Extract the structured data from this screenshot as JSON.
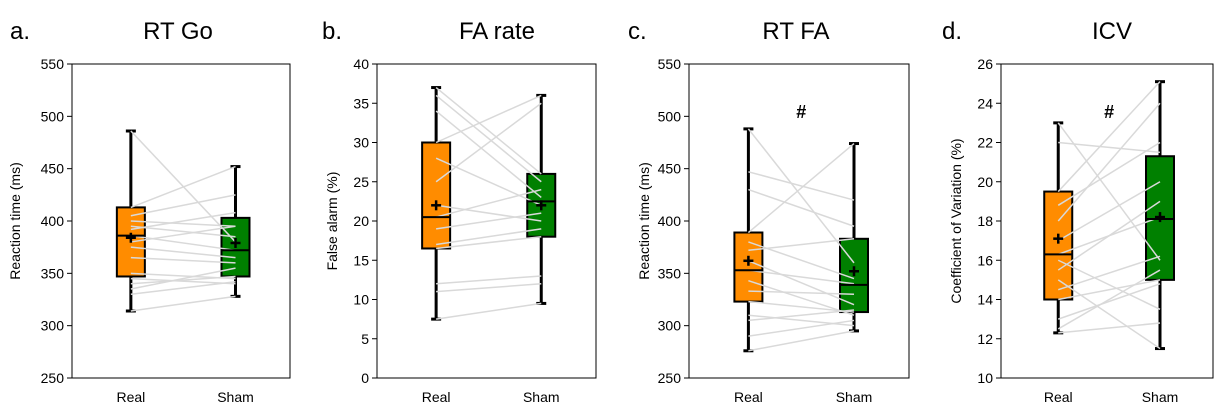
{
  "colors": {
    "real": "#FF8C00",
    "sham": "#008000",
    "pairs": "#D9D9D9",
    "frame": "#000000"
  },
  "chart_data": [
    {
      "type": "box",
      "letter": "a.",
      "title": "RT Go",
      "ylabel": "Reaction  time  (ms)",
      "categories": [
        "Real",
        "Sham"
      ],
      "ylim": [
        250,
        550
      ],
      "yticks": [
        250,
        300,
        350,
        400,
        450,
        500,
        550
      ],
      "annotation": "",
      "boxes": [
        {
          "name": "Real",
          "min": 314,
          "q1": 347,
          "median": 386,
          "q3": 413,
          "max": 486,
          "mean": 384
        },
        {
          "name": "Sham",
          "min": 328,
          "q1": 347,
          "median": 372,
          "q3": 403,
          "max": 452,
          "mean": 379
        }
      ],
      "pairs": [
        [
          486,
          380
        ],
        [
          413,
          452
        ],
        [
          405,
          425
        ],
        [
          400,
          395
        ],
        [
          395,
          385
        ],
        [
          392,
          408
        ],
        [
          386,
          372
        ],
        [
          380,
          395
        ],
        [
          375,
          365
        ],
        [
          365,
          360
        ],
        [
          350,
          345
        ],
        [
          345,
          340
        ],
        [
          340,
          347
        ],
        [
          335,
          355
        ],
        [
          330,
          342
        ],
        [
          314,
          328
        ]
      ]
    },
    {
      "type": "box",
      "letter": "b.",
      "title": "FA rate",
      "ylabel": "False alarm (%)",
      "categories": [
        "Real",
        "Sham"
      ],
      "ylim": [
        0,
        40
      ],
      "yticks": [
        0,
        5,
        10,
        15,
        20,
        25,
        30,
        35,
        40
      ],
      "annotation": "",
      "boxes": [
        {
          "name": "Real",
          "min": 7.5,
          "q1": 16.5,
          "median": 20.5,
          "q3": 30,
          "max": 37,
          "mean": 22
        },
        {
          "name": "Sham",
          "min": 9.5,
          "q1": 18,
          "median": 22.5,
          "q3": 26,
          "max": 36,
          "mean": 22
        }
      ],
      "pairs": [
        [
          37,
          26
        ],
        [
          36,
          25
        ],
        [
          34,
          23
        ],
        [
          30,
          36
        ],
        [
          28,
          22
        ],
        [
          25,
          35
        ],
        [
          22,
          20
        ],
        [
          20.5,
          24
        ],
        [
          19,
          21
        ],
        [
          17,
          19
        ],
        [
          16.5,
          18
        ],
        [
          12,
          13
        ],
        [
          11,
          12
        ],
        [
          7.5,
          9.5
        ]
      ]
    },
    {
      "type": "box",
      "letter": "c.",
      "title": "RT FA",
      "ylabel": "Reaction time (ms)",
      "categories": [
        "Real",
        "Sham"
      ],
      "ylim": [
        250,
        550
      ],
      "yticks": [
        250,
        300,
        350,
        400,
        450,
        500,
        550
      ],
      "annotation": "#",
      "boxes": [
        {
          "name": "Real",
          "min": 276,
          "q1": 323,
          "median": 353,
          "q3": 389,
          "max": 488,
          "mean": 362
        },
        {
          "name": "Sham",
          "min": 295,
          "q1": 313,
          "median": 339,
          "q3": 383,
          "max": 474,
          "mean": 352
        }
      ],
      "pairs": [
        [
          488,
          360
        ],
        [
          447,
          420
        ],
        [
          430,
          395
        ],
        [
          389,
          474
        ],
        [
          380,
          345
        ],
        [
          372,
          383
        ],
        [
          362,
          320
        ],
        [
          353,
          340
        ],
        [
          343,
          310
        ],
        [
          333,
          330
        ],
        [
          323,
          313
        ],
        [
          310,
          300
        ],
        [
          305,
          315
        ],
        [
          290,
          305
        ],
        [
          276,
          295
        ]
      ]
    },
    {
      "type": "box",
      "letter": "d.",
      "title": "ICV",
      "ylabel": "Coefficient of Variation (%)",
      "categories": [
        "Real",
        "Sham"
      ],
      "ylim": [
        10,
        26
      ],
      "yticks": [
        10,
        12,
        14,
        16,
        18,
        20,
        22,
        24,
        26
      ],
      "annotation": "#",
      "boxes": [
        {
          "name": "Real",
          "min": 12.3,
          "q1": 14,
          "median": 16.3,
          "q3": 19.5,
          "max": 23,
          "mean": 17.1
        },
        {
          "name": "Sham",
          "min": 11.5,
          "q1": 15,
          "median": 18.1,
          "q3": 21.3,
          "max": 25.1,
          "mean": 18.2
        }
      ],
      "pairs": [
        [
          23,
          16
        ],
        [
          22,
          21.5
        ],
        [
          19.5,
          25.1
        ],
        [
          18.8,
          22
        ],
        [
          18,
          24
        ],
        [
          17,
          20
        ],
        [
          16.3,
          18.2
        ],
        [
          16,
          13.5
        ],
        [
          15.5,
          19
        ],
        [
          15,
          11.5
        ],
        [
          14.5,
          16.2
        ],
        [
          14,
          15
        ],
        [
          13,
          14.8
        ],
        [
          12.5,
          15.5
        ],
        [
          12.3,
          12.8
        ]
      ]
    }
  ]
}
